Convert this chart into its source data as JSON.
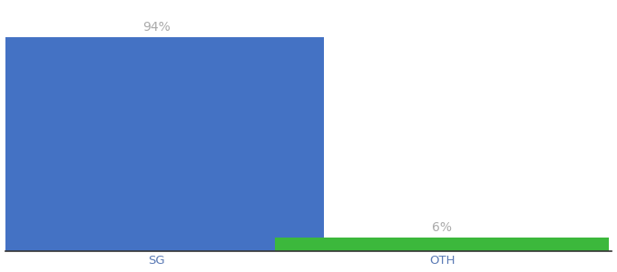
{
  "categories": [
    "SG",
    "OTH"
  ],
  "values": [
    94,
    6
  ],
  "bar_colors": [
    "#4472c4",
    "#3cb83c"
  ],
  "labels": [
    "94%",
    "6%"
  ],
  "background_color": "#ffffff",
  "ylim": [
    0,
    108
  ],
  "bar_width": 0.55,
  "x_positions": [
    0.25,
    0.72
  ],
  "x_lim": [
    0.0,
    1.0
  ],
  "label_fontsize": 10,
  "tick_fontsize": 9.5,
  "tick_color": "#5a7ab5",
  "label_color": "#aaaaaa"
}
